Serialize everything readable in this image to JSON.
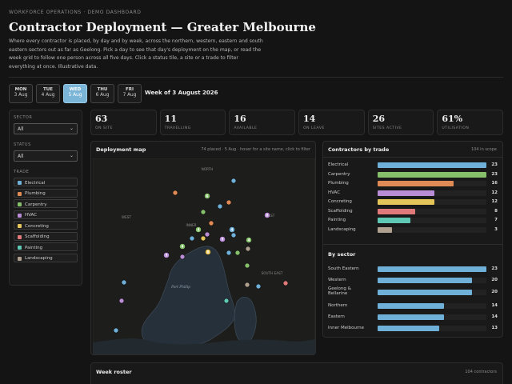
{
  "header": {
    "kicker": "WORKFORCE OPERATIONS · DEMO DASHBOARD",
    "title": "Contractor Deployment — Greater Melbourne",
    "intro": "Where every contractor is placed, by day and by week, across the northern, western, eastern and south eastern sectors out as far as Geelong. Pick a day to see that day's deployment on the map, or read the week grid to follow one person across all five days. Click a status tile, a site or a trade to filter everything at once. Illustrative data."
  },
  "days": [
    {
      "name": "MON",
      "date": "3 Aug"
    },
    {
      "name": "TUE",
      "date": "4 Aug"
    },
    {
      "name": "WED",
      "date": "5 Aug"
    },
    {
      "name": "THU",
      "date": "6 Aug"
    },
    {
      "name": "FRI",
      "date": "7 Aug"
    }
  ],
  "selected_day_index": 2,
  "week_label": "Week of 3 August 2026",
  "filters": {
    "sector_label": "SECTOR",
    "sector_value": "All",
    "status_label": "STATUS",
    "status_value": "All",
    "trade_label": "TRADE",
    "trades": [
      {
        "name": "Electrical",
        "color": "#6fb0d8"
      },
      {
        "name": "Plumbing",
        "color": "#e08a55"
      },
      {
        "name": "Carpentry",
        "color": "#86c06a"
      },
      {
        "name": "HVAC",
        "color": "#b98cd6"
      },
      {
        "name": "Concreting",
        "color": "#e3c55a"
      },
      {
        "name": "Scaffolding",
        "color": "#e07a7a"
      },
      {
        "name": "Painting",
        "color": "#5fc8b4"
      },
      {
        "name": "Landscaping",
        "color": "#b0a090"
      }
    ]
  },
  "stats": [
    {
      "value": "63",
      "label": "ON SITE"
    },
    {
      "value": "11",
      "label": "TRAVELLING"
    },
    {
      "value": "16",
      "label": "AVAILABLE"
    },
    {
      "value": "14",
      "label": "ON LEAVE"
    },
    {
      "value": "26",
      "label": "SITES ACTIVE"
    },
    {
      "value": "61%",
      "label": "UTILISATION"
    }
  ],
  "map": {
    "title": "Deployment map",
    "subtitle": "74 placed · 5 Aug · hover for a site name, click to filter",
    "labels": {
      "north": "NORTH",
      "west": "WEST",
      "inner": "INNER",
      "east": "EAST",
      "south_east": "SOUTH EAST",
      "bay": "Port Phillip"
    },
    "pins": [
      {
        "count": "",
        "color": "#6fb0d8"
      },
      {
        "count": "",
        "color": "#e08a55"
      },
      {
        "count": "6",
        "color": "#86c06a"
      },
      {
        "count": "",
        "color": "#e08a55"
      },
      {
        "count": "",
        "color": "#86c06a"
      },
      {
        "count": "",
        "color": "#6fb0d8"
      },
      {
        "count": "4",
        "color": "#6fb0d8"
      },
      {
        "count": "8",
        "color": "#b98cd6"
      },
      {
        "count": "",
        "color": "#e08a55"
      },
      {
        "count": "4",
        "color": "#86c06a"
      },
      {
        "count": "",
        "color": "#e3c55a"
      },
      {
        "count": "5",
        "color": "#b98cd6"
      },
      {
        "count": "",
        "color": "#6fb0d8"
      },
      {
        "count": "",
        "color": "#b98cd6"
      },
      {
        "count": "",
        "color": "#6fb0d8"
      },
      {
        "count": "6",
        "color": "#e3c55a"
      },
      {
        "count": "4",
        "color": "#86c06a"
      },
      {
        "count": "5",
        "color": "#b98cd6"
      },
      {
        "count": "",
        "color": "#b98cd6"
      },
      {
        "count": "",
        "color": "#b0a090"
      },
      {
        "count": "4",
        "color": "#86c06a"
      },
      {
        "count": "",
        "color": "#86c06a"
      },
      {
        "count": "",
        "color": "#b0a090"
      },
      {
        "count": "",
        "color": "#e07a7a"
      },
      {
        "count": "",
        "color": "#6fb0d8"
      },
      {
        "count": "",
        "color": "#6fb0d8"
      },
      {
        "count": "",
        "color": "#b98cd6"
      },
      {
        "count": "",
        "color": "#5fc8b4"
      },
      {
        "count": "",
        "color": "#6fb0d8"
      },
      {
        "count": "",
        "color": "#86c06a"
      },
      {
        "count": "",
        "color": "#6fb0d8"
      }
    ]
  },
  "trades_card": {
    "title": "Contractors by trade",
    "scope": "104 in scope",
    "by_trade": [
      {
        "label": "Electrical",
        "value": 23,
        "color": "#6fb0d8"
      },
      {
        "label": "Carpentry",
        "value": 23,
        "color": "#86c06a"
      },
      {
        "label": "Plumbing",
        "value": 16,
        "color": "#e08a55"
      },
      {
        "label": "HVAC",
        "value": 12,
        "color": "#b98cd6"
      },
      {
        "label": "Concreting",
        "value": 12,
        "color": "#e3c55a"
      },
      {
        "label": "Scaffolding",
        "value": 8,
        "color": "#e07a7a"
      },
      {
        "label": "Painting",
        "value": 7,
        "color": "#5fc8b4"
      },
      {
        "label": "Landscaping",
        "value": 3,
        "color": "#b0a090"
      }
    ],
    "sector_title": "By sector",
    "by_sector": [
      {
        "label": "South Eastern",
        "value": 23
      },
      {
        "label": "Western",
        "value": 20
      },
      {
        "label": "Geelong & Bellarine",
        "value": 20
      },
      {
        "label": "Northern",
        "value": 14
      },
      {
        "label": "Eastern",
        "value": 14
      },
      {
        "label": "Inner Melbourne",
        "value": 13
      }
    ],
    "sector_color": "#6fb0d8",
    "max_value": 23
  },
  "roster": {
    "title": "Week roster",
    "count": "104 contractors"
  }
}
